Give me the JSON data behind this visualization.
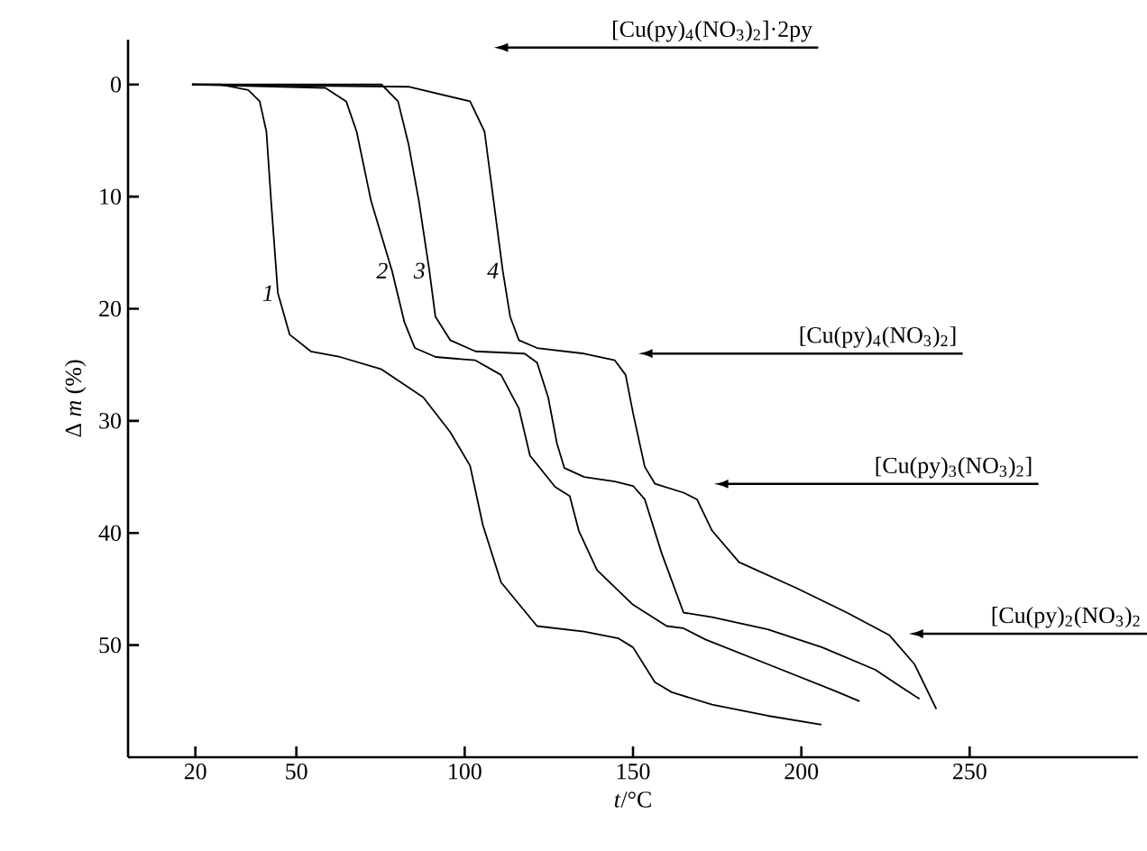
{
  "chart_data": {
    "type": "line",
    "xlabel": "*t*/°C",
    "ylabel": "Δ *m* (%)",
    "xlim": [
      0,
      300
    ],
    "ylim": [
      60,
      -4
    ],
    "xticks": [
      20,
      50,
      100,
      150,
      200,
      250
    ],
    "yticks": [
      0,
      10,
      20,
      30,
      40,
      50
    ],
    "series": [
      {
        "name": "1",
        "color": "#000000",
        "x": [
          19,
          27.5,
          35.7,
          39.1,
          41.1,
          42.5,
          44.5,
          48,
          54.3,
          63,
          75.3,
          87.7,
          95.7,
          101.6,
          105.4,
          110.8,
          121.5,
          135.5,
          145.7,
          150,
          156.5,
          161.5,
          173.5,
          190,
          206
        ],
        "values": [
          0,
          0,
          0.5,
          1.5,
          4.2,
          10.4,
          18.6,
          22.3,
          23.8,
          24.3,
          25.4,
          27.9,
          31,
          34,
          39.3,
          44.4,
          48.3,
          48.8,
          49.4,
          50.2,
          53.3,
          54.2,
          55.3,
          56.3,
          57.1
        ]
      },
      {
        "name": "2",
        "color": "#000000",
        "x": [
          19,
          58.6,
          64.8,
          67.9,
          72.2,
          78.4,
          82.1,
          85.2,
          91.4,
          103.2,
          110.8,
          116.1,
          119.4,
          126.9,
          131.2,
          133.9,
          139.3,
          150,
          160,
          165,
          171.5,
          190,
          209.3,
          217.3
        ],
        "values": [
          0,
          0.3,
          1.5,
          4.2,
          10.4,
          16.6,
          21.2,
          23.5,
          24.3,
          24.6,
          25.9,
          28.9,
          33.1,
          35.9,
          36.7,
          39.8,
          43.3,
          46.4,
          48.3,
          48.5,
          49.5,
          51.7,
          54,
          55
        ]
      },
      {
        "name": "3",
        "color": "#000000",
        "x": [
          19,
          75.3,
          80.2,
          83.3,
          86.4,
          89.5,
          91.3,
          95.7,
          103.2,
          117.8,
          121.5,
          124.8,
          127.4,
          129.6,
          135.5,
          144.6,
          150,
          153.5,
          158.5,
          165,
          173.5,
          190,
          206.2,
          222,
          229.5,
          235.1
        ],
        "values": [
          0,
          0,
          1.5,
          5.3,
          10.4,
          16.6,
          20.7,
          22.8,
          23.8,
          24,
          24.8,
          27.9,
          32,
          34.2,
          35,
          35.4,
          35.8,
          37,
          41.8,
          47.1,
          47.5,
          48.6,
          50.2,
          52.2,
          53.7,
          54.8
        ]
      },
      {
        "name": "4",
        "color": "#000000",
        "x": [
          19,
          83.3,
          101.6,
          105.9,
          108.6,
          111.3,
          113.5,
          116.1,
          121.5,
          135.5,
          144.6,
          147.8,
          150,
          153.5,
          156.5,
          165,
          169,
          173.5,
          181.5,
          198.5,
          213.5,
          226.1,
          233.6,
          240.1
        ],
        "values": [
          0,
          0.2,
          1.5,
          4.2,
          10.4,
          16.6,
          20.7,
          22.8,
          23.5,
          24,
          24.6,
          25.9,
          29.3,
          34.1,
          35.6,
          36.4,
          37,
          39.8,
          42.6,
          44.9,
          47.1,
          49.1,
          51.7,
          55.7
        ]
      }
    ],
    "annotations": [
      "[Cu(py)$_{4}$(NO$_{3}$)$_{2}$]·2py",
      "[Cu(py)$_{4}$(NO$_{3}$)$_{2}$]",
      "[Cu(py)$_{3}$(NO$_{3}$)$_{2}$]",
      "[Cu(py)$_{2}$(NO$_{3}$)$_{2}$"
    ]
  }
}
